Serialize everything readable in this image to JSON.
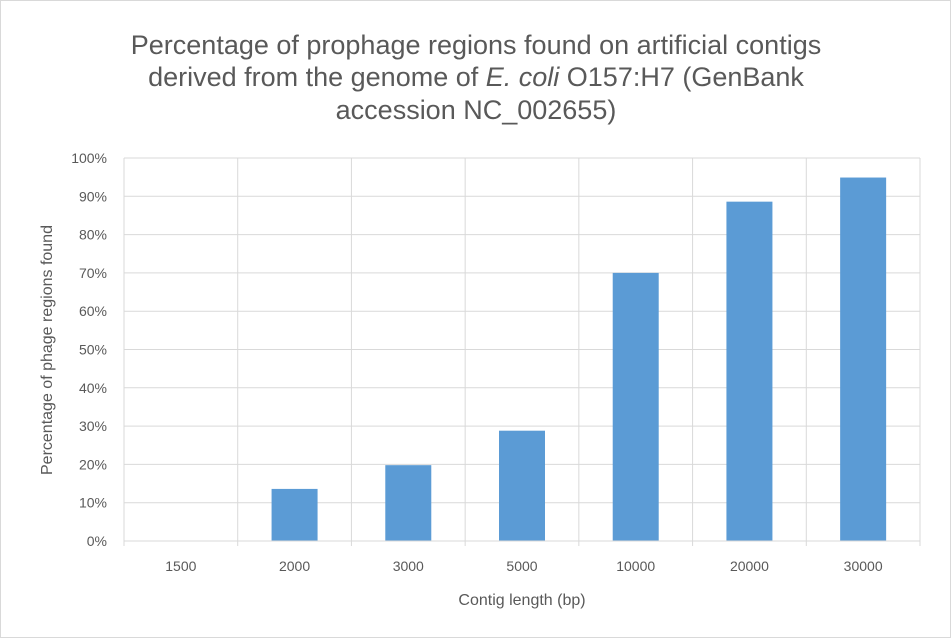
{
  "chart_data": {
    "type": "bar",
    "title": {
      "line1": "Percentage of prophage regions found on artificial contigs",
      "line2_prefix": "derived from the genome of ",
      "line2_italic": "E. coli",
      "line2_suffix": " O157:H7 (GenBank",
      "line3": "accession NC_002655)"
    },
    "xlabel": "Contig length (bp)",
    "ylabel": "Percentage of phage regions found",
    "categories": [
      "1500",
      "2000",
      "3000",
      "5000",
      "10000",
      "20000",
      "30000"
    ],
    "values": [
      0,
      13.6,
      19.8,
      28.8,
      70.0,
      88.6,
      94.9
    ],
    "ylim": [
      0,
      100
    ],
    "yticks": [
      "0%",
      "10%",
      "20%",
      "30%",
      "40%",
      "50%",
      "60%",
      "70%",
      "80%",
      "90%",
      "100%"
    ],
    "grid": true,
    "legend": "none",
    "bar_color": "#5b9bd5",
    "grid_color": "#d9d9d9",
    "text_color": "#595959"
  }
}
